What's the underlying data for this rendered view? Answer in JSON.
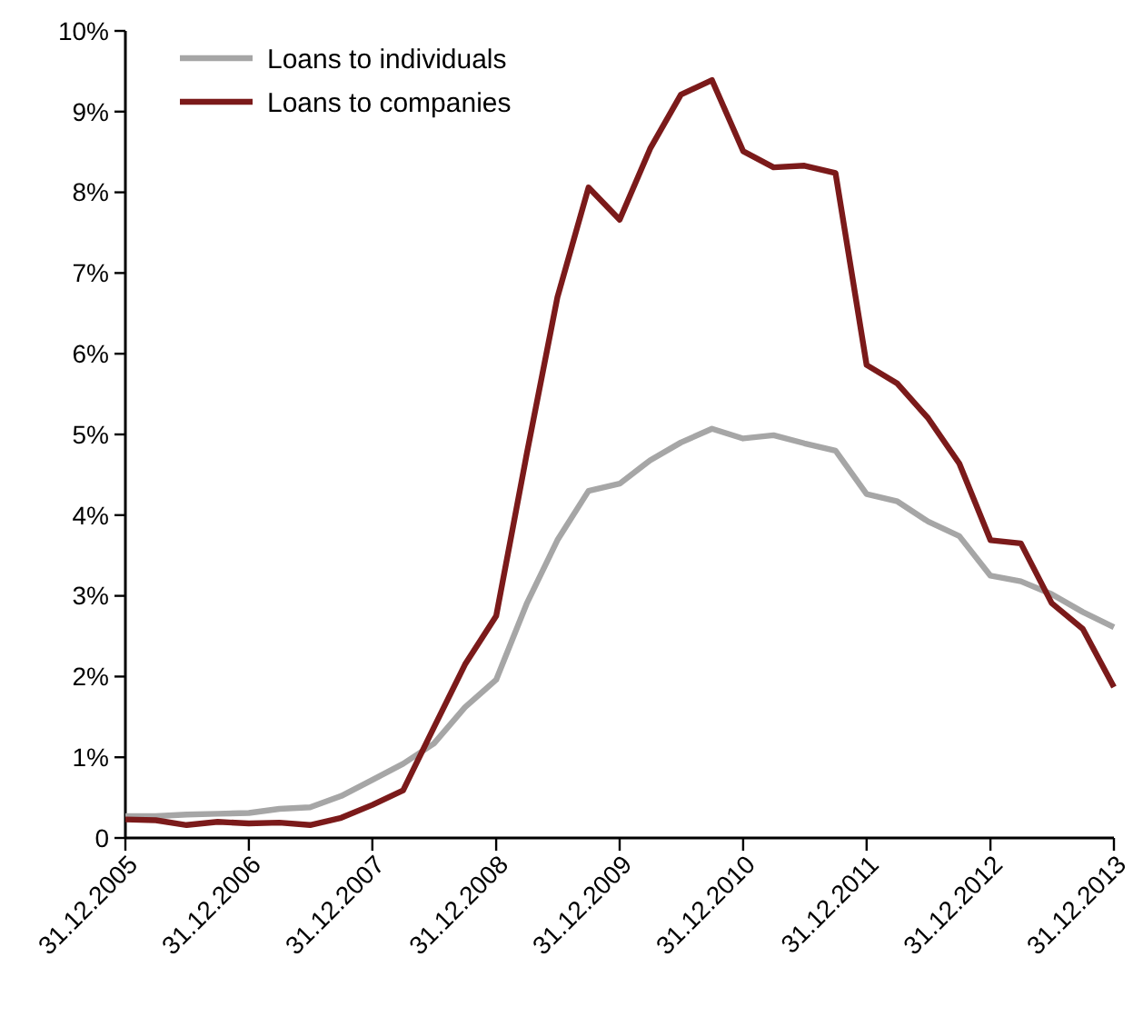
{
  "chart_data": {
    "type": "line",
    "x": [
      "2005-12-31",
      "2006-03-31",
      "2006-06-30",
      "2006-09-30",
      "2006-12-31",
      "2007-03-31",
      "2007-06-30",
      "2007-09-30",
      "2007-12-31",
      "2008-03-31",
      "2008-06-30",
      "2008-09-30",
      "2008-12-31",
      "2009-03-31",
      "2009-06-30",
      "2009-09-30",
      "2009-12-31",
      "2010-03-31",
      "2010-06-30",
      "2010-09-30",
      "2010-12-31",
      "2011-03-31",
      "2011-06-30",
      "2011-09-30",
      "2011-12-31",
      "2012-03-31",
      "2012-06-30",
      "2012-09-30",
      "2012-12-31",
      "2013-03-31",
      "2013-06-30",
      "2013-09-30",
      "2013-12-31"
    ],
    "series": [
      {
        "name": "Loans to individuals",
        "color": "#a6a6a6",
        "values": [
          0.27,
          0.27,
          0.29,
          0.3,
          0.31,
          0.36,
          0.38,
          0.52,
          0.72,
          0.92,
          1.17,
          1.62,
          1.96,
          2.9,
          3.69,
          4.3,
          4.39,
          4.68,
          4.9,
          5.07,
          4.95,
          4.99,
          4.89,
          4.8,
          4.26,
          4.17,
          3.92,
          3.74,
          3.25,
          3.18,
          3.02,
          2.8,
          2.61
        ]
      },
      {
        "name": "Loans to companies",
        "color": "#7b1a1a",
        "values": [
          0.23,
          0.22,
          0.16,
          0.2,
          0.18,
          0.19,
          0.16,
          0.25,
          0.41,
          0.59,
          1.37,
          2.15,
          2.75,
          4.75,
          6.7,
          8.06,
          7.66,
          8.54,
          9.21,
          9.39,
          8.51,
          8.31,
          8.33,
          8.24,
          5.86,
          5.63,
          5.2,
          4.64,
          3.69,
          3.65,
          2.91,
          2.59,
          1.87
        ]
      }
    ],
    "xlim": [
      "2005-12-31",
      "2013-12-31"
    ],
    "xticks": [
      {
        "value": "2005-12-31",
        "label": "31.12.2005"
      },
      {
        "value": "2006-12-31",
        "label": "31.12.2006"
      },
      {
        "value": "2007-12-31",
        "label": "31.12.2007"
      },
      {
        "value": "2008-12-31",
        "label": "31.12.2008"
      },
      {
        "value": "2009-12-31",
        "label": "31.12.2009"
      },
      {
        "value": "2010-12-31",
        "label": "31.12.2010"
      },
      {
        "value": "2011-12-31",
        "label": "31.12.2011"
      },
      {
        "value": "2012-12-31",
        "label": "31.12.2012"
      },
      {
        "value": "2013-12-31",
        "label": "31.12.2013"
      }
    ],
    "ylim": [
      0,
      10
    ],
    "yticks": [
      {
        "value": 0,
        "label": "0"
      },
      {
        "value": 1,
        "label": "1%"
      },
      {
        "value": 2,
        "label": "2%"
      },
      {
        "value": 3,
        "label": "3%"
      },
      {
        "value": 4,
        "label": "4%"
      },
      {
        "value": 5,
        "label": "5%"
      },
      {
        "value": 6,
        "label": "6%"
      },
      {
        "value": 7,
        "label": "7%"
      },
      {
        "value": 8,
        "label": "8%"
      },
      {
        "value": 9,
        "label": "9%"
      },
      {
        "value": 10,
        "label": "10%"
      }
    ],
    "grid": false,
    "legend": "top left",
    "line_style": "solid",
    "marker": "none"
  }
}
